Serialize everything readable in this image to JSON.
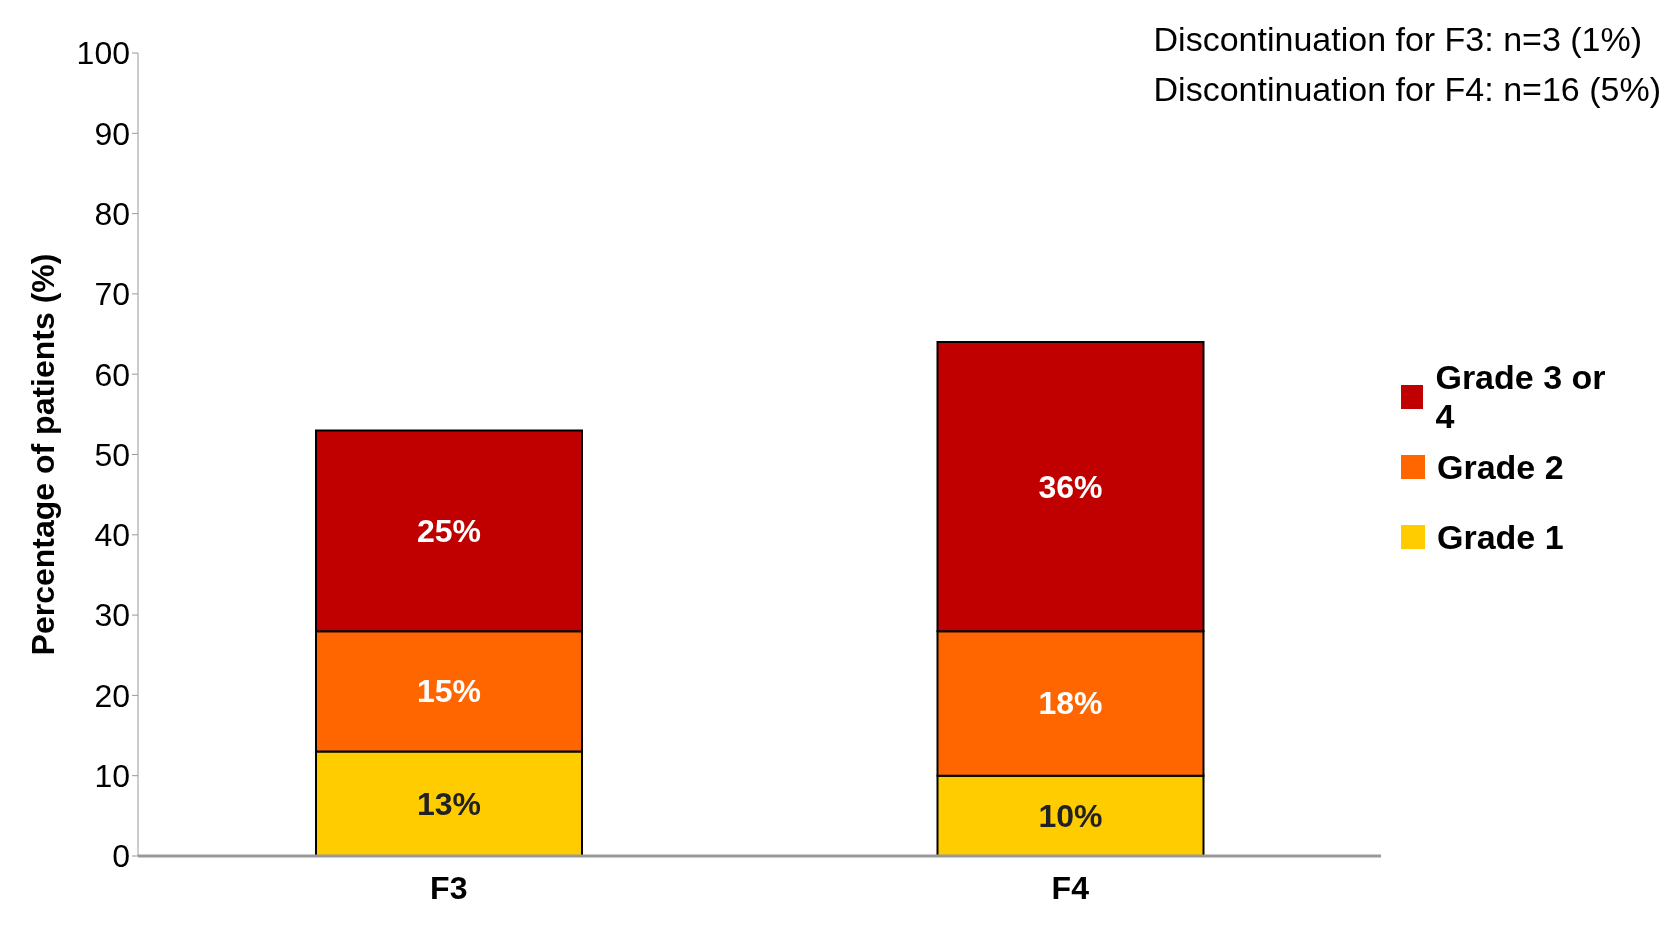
{
  "chart_data": {
    "type": "bar",
    "stacked": true,
    "ylabel": "Percentage of patients (%)",
    "categories": [
      "F3",
      "F4"
    ],
    "series": [
      {
        "name": "Grade 1",
        "color": "#ffcc00",
        "values": [
          13,
          10
        ],
        "value_labels": [
          "13%",
          "10%"
        ]
      },
      {
        "name": "Grade 2",
        "color": "#ff6600",
        "values": [
          15,
          18
        ],
        "value_labels": [
          "15%",
          "18%"
        ]
      },
      {
        "name": "Grade 3 or 4",
        "color": "#c00000",
        "values": [
          25,
          36
        ],
        "value_labels": [
          "25%",
          "36%"
        ]
      }
    ],
    "ylim": [
      0,
      100
    ],
    "yticks": [
      0,
      10,
      20,
      30,
      40,
      50,
      60,
      70,
      80,
      90,
      100
    ],
    "grid": false,
    "legend": "right",
    "annotations": [
      "Discontinuation for F3: n=3 (1%)",
      "Discontinuation for F4: n=16 (5%)"
    ]
  }
}
